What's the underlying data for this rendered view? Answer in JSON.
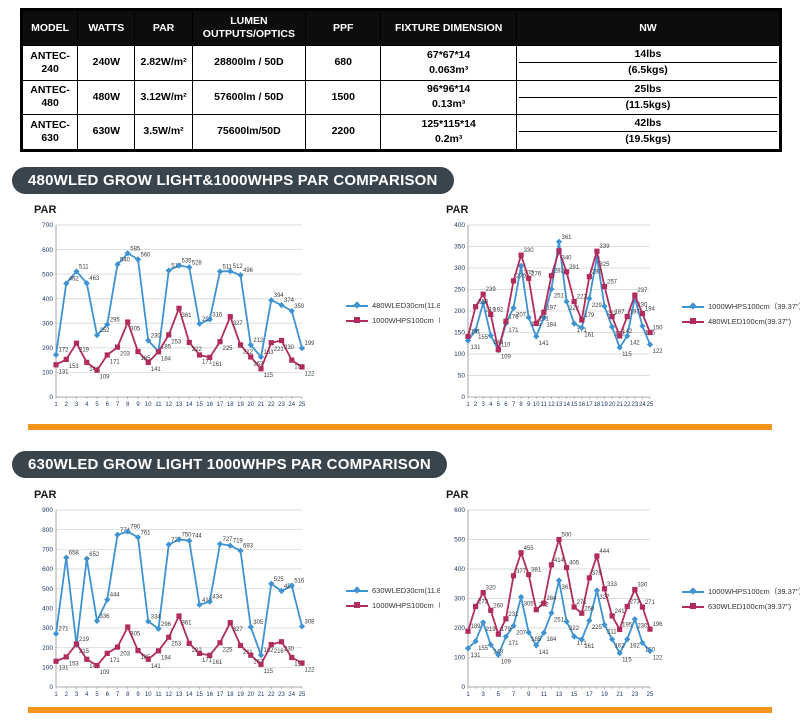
{
  "colors": {
    "blue": "#3e93d0",
    "red": "#b02c5e",
    "orange": "#f7941d",
    "pill_bg": "#3a444c",
    "table_header_bg": "#0d0d0d",
    "grid": "#d2d2d2",
    "axis": "#8f8f8f",
    "tick_text": "#1f3864",
    "label_text": "#3d3d3d"
  },
  "table": {
    "headers": [
      "MODEL",
      "WATTS",
      "PAR",
      "LUMEN OUTPUTS/OPTICS",
      "PPF",
      "FIXTURE DIMENSION",
      "NW"
    ],
    "rows": [
      {
        "model": "ANTEC-240",
        "watts": "240W",
        "par": "2.82W/m²",
        "lumen": "28800lm / 50D",
        "ppf": "680",
        "dim1": "67*67*14",
        "dim2": "0.063m³",
        "nw1": "14lbs",
        "nw2": "(6.5kgs)"
      },
      {
        "model": "ANTEC-480",
        "watts": "480W",
        "par": "3.12W/m²",
        "lumen": "57600lm / 50D",
        "ppf": "1500",
        "dim1": "96*96*14",
        "dim2": "0.13m³",
        "nw1": "25lbs",
        "nw2": "(11.5kgs)"
      },
      {
        "model": "ANTEC-630",
        "watts": "630W",
        "par": "3.5W/m²",
        "lumen": "75600lm/50D",
        "ppf": "2200",
        "dim1": "125*115*14",
        "dim2": "0.2m³",
        "nw1": "42lbs",
        "nw2": "(19.5kgs)"
      }
    ]
  },
  "sections": [
    {
      "title": "480WLED GROW LIGHT&1000WHPS PAR COMPARISON"
    },
    {
      "title": "630WLED GROW LIGHT 1000WHPS PAR COMPARISON"
    }
  ],
  "chart_data": [
    {
      "type": "line",
      "title": "PAR",
      "x": [
        1,
        2,
        3,
        4,
        5,
        6,
        7,
        8,
        9,
        10,
        11,
        12,
        13,
        14,
        15,
        16,
        17,
        18,
        19,
        20,
        21,
        22,
        23,
        24,
        25
      ],
      "xtick_every": 1,
      "ylim": [
        0,
        700
      ],
      "ytick_step": 100,
      "grid": "horizontal",
      "legend_position": "right",
      "series": [
        {
          "name": "480WLED30cm(11.8\")",
          "color": "blue",
          "marker": "diamond",
          "values": [
            172,
            462,
            511,
            463,
            252,
            295,
            540,
            585,
            560,
            230,
            185,
            515,
            535,
            528,
            298,
            316,
            511,
            512,
            496,
            212,
            163,
            394,
            374,
            350,
            199
          ]
        },
        {
          "name": "1000WHPS100cm（39.37\"）",
          "color": "red",
          "marker": "square",
          "values": [
            131,
            153,
            219,
            141,
            109,
            171,
            203,
            305,
            185,
            141,
            184,
            253,
            361,
            222,
            171,
            161,
            225,
            327,
            212,
            163,
            115,
            221,
            230,
            150,
            122
          ]
        }
      ]
    },
    {
      "type": "line",
      "title": "PAR",
      "x": [
        1,
        2,
        3,
        4,
        5,
        6,
        7,
        8,
        9,
        10,
        11,
        12,
        13,
        14,
        15,
        16,
        17,
        18,
        19,
        20,
        21,
        22,
        23,
        24,
        25
      ],
      "xtick_every": 1,
      "ylim": [
        0,
        400
      ],
      "ytick_step": 50,
      "grid": "horizontal",
      "legend_position": "right",
      "series": [
        {
          "name": "1000WHPS100cm（39.37\"）",
          "color": "blue",
          "marker": "diamond",
          "values": [
            131,
            155,
            219,
            143,
            109,
            171,
            207,
            305,
            185,
            141,
            184,
            251,
            361,
            222,
            171,
            161,
            229,
            325,
            211,
            163,
            115,
            142,
            230,
            165,
            122
          ]
        },
        {
          "name": "480WLED100cm(39.37\")",
          "color": "red",
          "marker": "square",
          "values": [
            141,
            210,
            239,
            192,
            110,
            176,
            270,
            330,
            276,
            171,
            197,
            282,
            340,
            291,
            222,
            179,
            280,
            339,
            257,
            187,
            142,
            187,
            237,
            194,
            150
          ]
        }
      ]
    },
    {
      "type": "line",
      "title": "PAR",
      "x": [
        1,
        2,
        3,
        4,
        5,
        6,
        7,
        8,
        9,
        10,
        11,
        12,
        13,
        14,
        15,
        16,
        17,
        18,
        19,
        20,
        21,
        22,
        23,
        24,
        25
      ],
      "xtick_every": 1,
      "ylim": [
        0,
        900
      ],
      "ytick_step": 100,
      "grid": "horizontal",
      "legend_position": "right",
      "series": [
        {
          "name": "630WLED30cm(11.8\")",
          "color": "blue",
          "marker": "diamond",
          "values": [
            271,
            658,
            215,
            652,
            336,
            444,
            774,
            790,
            761,
            334,
            296,
            724,
            750,
            744,
            418,
            434,
            727,
            719,
            693,
            305,
            162,
            525,
            488,
            516,
            308
          ]
        },
        {
          "name": "1000WHPS100cm（39.37\"）",
          "color": "red",
          "marker": "square",
          "values": [
            131,
            153,
            219,
            141,
            109,
            171,
            203,
            305,
            185,
            141,
            184,
            253,
            361,
            222,
            171,
            161,
            225,
            327,
            211,
            162,
            115,
            216,
            230,
            150,
            122
          ]
        }
      ]
    },
    {
      "type": "line",
      "title": "PAR",
      "x": [
        1,
        2,
        3,
        4,
        5,
        6,
        7,
        8,
        9,
        10,
        11,
        12,
        13,
        14,
        15,
        16,
        17,
        18,
        19,
        20,
        21,
        22,
        23,
        24,
        25
      ],
      "xtick_every": 2,
      "ylim": [
        0,
        600
      ],
      "ytick_step": 100,
      "grid": "horizontal",
      "legend_position": "right",
      "series": [
        {
          "name": "1000WHPS100cm（39.37\"）",
          "color": "blue",
          "marker": "diamond",
          "values": [
            131,
            155,
            219,
            143,
            109,
            171,
            207,
            305,
            185,
            141,
            184,
            251,
            361,
            222,
            171,
            161,
            225,
            327,
            211,
            162,
            115,
            162,
            230,
            150,
            122
          ]
        },
        {
          "name": "630WLED100cm(39.37\")",
          "color": "red",
          "marker": "square",
          "values": [
            189,
            273,
            320,
            260,
            179,
            231,
            377,
            455,
            381,
            262,
            284,
            414,
            500,
            405,
            271,
            250,
            370,
            444,
            333,
            241,
            195,
            273,
            330,
            271,
            196
          ]
        }
      ]
    }
  ]
}
